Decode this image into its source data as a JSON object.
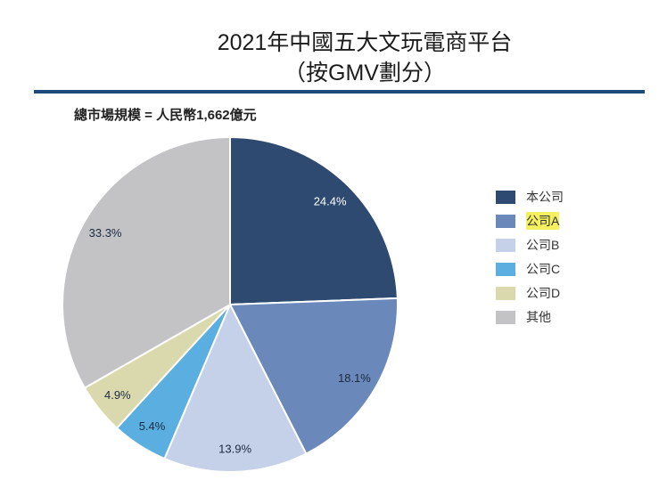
{
  "chart_data": {
    "type": "pie",
    "title": "2021年中國五大文玩電商平台",
    "subtitle": "（按GMV劃分）",
    "note": "總市場規模 = 人民幣1,662億元",
    "categories": [
      "本公司",
      "公司A",
      "公司B",
      "公司C",
      "公司D",
      "其他"
    ],
    "values": [
      24.4,
      18.1,
      13.9,
      5.4,
      4.9,
      33.3
    ],
    "labels": [
      "24.4%",
      "18.1%",
      "13.9%",
      "5.4%",
      "4.9%",
      "33.3%"
    ],
    "colors": [
      "#2f4a70",
      "#6a88b9",
      "#c4d1e8",
      "#5aaee0",
      "#dad9ae",
      "#c3c3c6"
    ],
    "legend_position": "right",
    "highlighted_legend_entry": "公司A"
  }
}
